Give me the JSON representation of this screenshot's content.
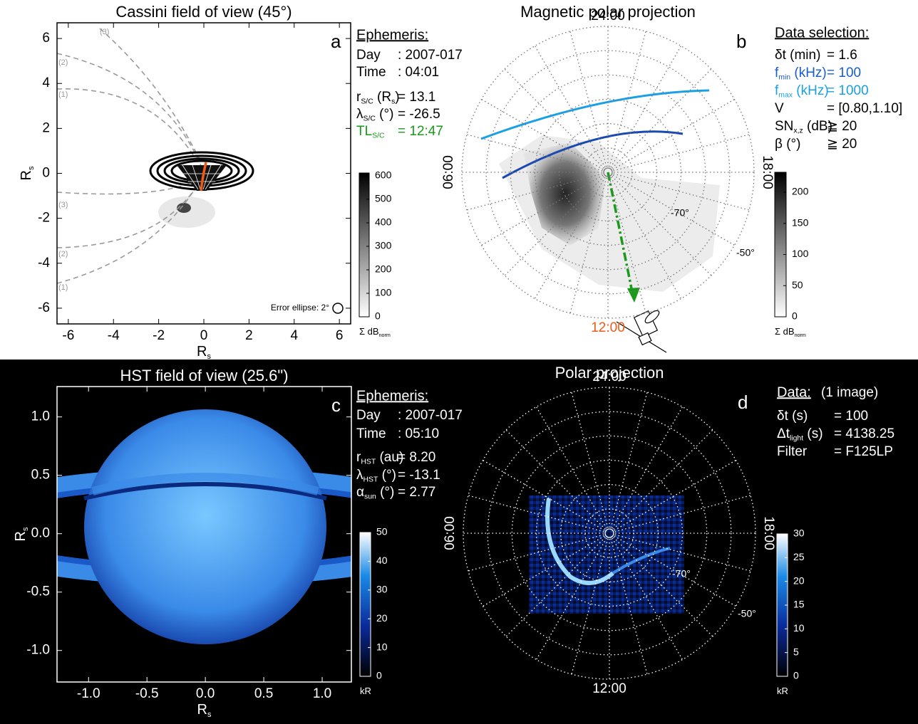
{
  "chart_data": [
    {
      "type": "image",
      "panel": "a",
      "title": "Cassini field of view (45°)",
      "xlabel": [
        "R",
        "s"
      ],
      "ylabel": [
        "R",
        "s"
      ],
      "xlim": [
        -6.5,
        6.5
      ],
      "ylim": [
        -6.7,
        6.7
      ],
      "xticks": [
        -6,
        -4,
        -2,
        0,
        2,
        4,
        6
      ],
      "yticks": [
        -6,
        -4,
        -2,
        0,
        2,
        4,
        6
      ],
      "colormap": "gray",
      "colorbar": {
        "clim": [
          0,
          612
        ],
        "ticks": [
          0,
          100,
          200,
          300,
          400,
          500,
          600
        ],
        "label": [
          "Σ dB",
          "norm"
        ]
      },
      "annotations": [
        "(3)",
        "(2)",
        "(1)",
        "(3)",
        "(2)",
        "(1)",
        "Error ellipse: 2°"
      ],
      "info": {
        "heading": "Ephemeris:",
        "rows": [
          {
            "label": [
              "Day"
            ],
            "value": ": 2007-017"
          },
          {
            "label": [
              "Time"
            ],
            "value": ": 04:01"
          },
          {
            "label": [
              "r",
              "S/C",
              " (R",
              "s",
              ")"
            ],
            "value": "= 13.1"
          },
          {
            "label": [
              "λ",
              "S/C",
              " (°)"
            ],
            "value": "= -26.5"
          },
          {
            "label": [
              "TL",
              "S/C"
            ],
            "value": "= 12:47",
            "color": "#1a9a1a"
          }
        ]
      }
    },
    {
      "type": "polar",
      "panel": "b",
      "title": "Magnetic polar projection",
      "hour_labels": [
        "24:00",
        "06:00",
        "18:00",
        "12:00"
      ],
      "hour_label_colors": [
        "#000",
        "#000",
        "#000",
        "#f05a14"
      ],
      "lat_labels": [
        "-70°",
        "-50°"
      ],
      "colormap": "gray",
      "colorbar": {
        "clim": [
          0,
          232
        ],
        "ticks": [
          0,
          50,
          100,
          150,
          200
        ],
        "label": [
          "Σ dB",
          "norm"
        ]
      },
      "info": {
        "heading": "Data selection:",
        "rows": [
          {
            "label": [
              "δt (min)"
            ],
            "value": "= 1.6"
          },
          {
            "label": [
              "f",
              "min",
              " (kHz)"
            ],
            "value": "= 100",
            "color": "#1a5fc8"
          },
          {
            "label": [
              "f",
              "max",
              " (kHz)"
            ],
            "value": "= 1000",
            "color": "#1aa0e6"
          },
          {
            "label": [
              "V"
            ],
            "value": "= [0.80,1.10]"
          },
          {
            "label": [
              "SN",
              "x,z",
              " (dB)"
            ],
            "value": "≧ 20"
          },
          {
            "label": [
              "β (°)"
            ],
            "value": "≧ 20"
          }
        ]
      }
    },
    {
      "type": "image",
      "panel": "c",
      "title": "HST field of view (25.6\")",
      "xlabel": [
        "R",
        "s"
      ],
      "ylabel": [
        "R",
        "s"
      ],
      "xlim": [
        -1.27,
        1.25
      ],
      "ylim": [
        -1.27,
        1.26
      ],
      "xticks": [
        {
          "value": -1,
          "label": "-1.0"
        },
        -0.5,
        {
          "value": 0,
          "label": "0.0"
        },
        0.5,
        {
          "value": 1,
          "label": "1.0"
        }
      ],
      "yticks": [
        {
          "value": -1,
          "label": "-1.0"
        },
        -0.5,
        {
          "value": 0,
          "label": "0.0"
        },
        0.5,
        {
          "value": 1,
          "label": "1.0"
        }
      ],
      "colormap": "blue",
      "colorbar": {
        "clim": [
          0,
          50
        ],
        "ticks": [
          0,
          10,
          20,
          30,
          40,
          50
        ],
        "label": [
          "kR"
        ]
      },
      "info": {
        "heading": "Ephemeris:",
        "rows": [
          {
            "label": [
              "Day"
            ],
            "value": ": 2007-017"
          },
          {
            "label": [
              "Time"
            ],
            "value": ": 05:10"
          },
          {
            "label": [
              "r",
              "HST",
              " (au)"
            ],
            "value": "= 8.20"
          },
          {
            "label": [
              "λ",
              "HST",
              " (°)"
            ],
            "value": "= -13.1"
          },
          {
            "label": [
              "α",
              "sun",
              " (°)"
            ],
            "value": "= 2.77"
          }
        ]
      }
    },
    {
      "type": "polar",
      "panel": "d",
      "title": "Polar projection",
      "hour_labels": [
        "24:00",
        "06:00",
        "18:00",
        "12:00"
      ],
      "hour_label_colors": [
        "#fff",
        "#fff",
        "#fff",
        "#fff"
      ],
      "lat_labels": [
        "-70°",
        "-50°"
      ],
      "colormap": "blue",
      "colorbar": {
        "clim": [
          0,
          30
        ],
        "ticks": [
          0,
          5,
          10,
          15,
          20,
          25,
          30
        ],
        "label": [
          "kR"
        ]
      },
      "info": {
        "heading": "Data:",
        "heading_note": "(1 image)",
        "rows": [
          {
            "label": [
              "δt (s)"
            ],
            "value": "= 100"
          },
          {
            "label": [
              "Δt",
              "light",
              " (s)"
            ],
            "value": "= 4138.25"
          },
          {
            "label": [
              "Filter"
            ],
            "value": "= F125LP"
          }
        ]
      }
    }
  ]
}
